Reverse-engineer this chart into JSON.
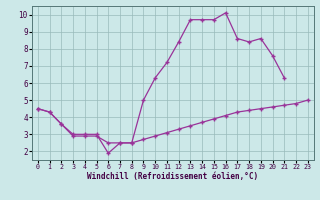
{
  "xlabel": "Windchill (Refroidissement éolien,°C)",
  "curve1_x": [
    0,
    1,
    2,
    3,
    4,
    5,
    6,
    7,
    8,
    9,
    10,
    11,
    12,
    13,
    14,
    15,
    16,
    17,
    18,
    19,
    20,
    21
  ],
  "curve1_y": [
    4.5,
    4.3,
    3.6,
    3.0,
    3.0,
    3.0,
    1.9,
    2.5,
    2.5,
    5.0,
    6.3,
    7.2,
    8.4,
    9.7,
    9.7,
    9.7,
    10.1,
    8.6,
    8.4,
    8.6,
    7.6,
    6.3
  ],
  "curve2_x": [
    0,
    1,
    2,
    3,
    4,
    5,
    6,
    7,
    8,
    9,
    10,
    11,
    12,
    13,
    14,
    15,
    16,
    17,
    18,
    19,
    20,
    21,
    22,
    23
  ],
  "curve2_y": [
    4.5,
    4.3,
    3.6,
    2.9,
    2.9,
    2.9,
    2.5,
    2.5,
    2.5,
    2.7,
    2.9,
    3.1,
    3.3,
    3.5,
    3.7,
    3.9,
    4.1,
    4.3,
    4.4,
    4.5,
    4.6,
    4.7,
    4.8,
    5.0
  ],
  "line_color": "#993399",
  "bg_color": "#cce8e8",
  "grid_color": "#99bbbb",
  "ylim": [
    1.5,
    10.5
  ],
  "xlim": [
    -0.5,
    23.5
  ],
  "yticks": [
    2,
    3,
    4,
    5,
    6,
    7,
    8,
    9,
    10
  ],
  "xticks": [
    0,
    1,
    2,
    3,
    4,
    5,
    6,
    7,
    8,
    9,
    10,
    11,
    12,
    13,
    14,
    15,
    16,
    17,
    18,
    19,
    20,
    21,
    22,
    23
  ]
}
